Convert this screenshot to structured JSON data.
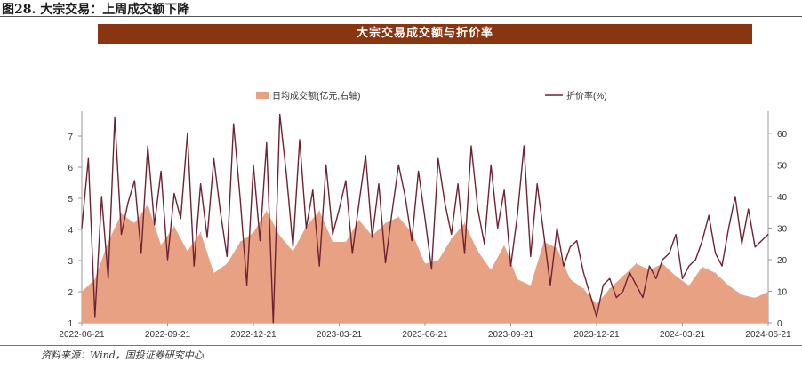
{
  "figure": {
    "title": "图28. 大宗交易：上周成交额下降",
    "banner": "大宗交易成交额与折价率",
    "source": "资料来源：Wind，国投证券研究中心"
  },
  "chart_data": {
    "type": "area+line",
    "legend": {
      "placement": "top-center",
      "area_label": "日均成交额(亿元,右轴)",
      "line_label": "折价率(%)"
    },
    "colors": {
      "area": "#e8a183",
      "line": "#6e2233"
    },
    "x_ticks": [
      "2022-06-21",
      "2022-09-21",
      "2022-12-21",
      "2023-03-21",
      "2023-06-21",
      "2023-09-21",
      "2023-12-21",
      "2024-03-21",
      "2024-06-21"
    ],
    "left_axis": {
      "ticks": [
        "1",
        "2",
        "3",
        "4",
        "5",
        "6",
        "7"
      ],
      "ylim": [
        1,
        7.8
      ]
    },
    "right_axis": {
      "ticks": [
        "0",
        "10",
        "20",
        "30",
        "40",
        "50",
        "60"
      ],
      "ylim": [
        0,
        67
      ]
    },
    "series": [
      {
        "name": "日均成交额(亿元,右轴)",
        "kind": "area",
        "axis": "left",
        "x": [
          0,
          2,
          4,
          6,
          8,
          10,
          12,
          14,
          16,
          18,
          20,
          22,
          24,
          26,
          28,
          30,
          32,
          34,
          36,
          38,
          40,
          42,
          44,
          46,
          48,
          50,
          52,
          54,
          56,
          58,
          60,
          62,
          64,
          66,
          68,
          70,
          72,
          74,
          76,
          78,
          80,
          82,
          84,
          86,
          88,
          90,
          92,
          94,
          96,
          98,
          100,
          102,
          104
        ],
        "values": [
          2.0,
          2.4,
          3.6,
          4.5,
          4.2,
          4.8,
          3.5,
          4.1,
          3.3,
          3.9,
          2.6,
          2.9,
          3.6,
          3.9,
          4.6,
          3.8,
          3.3,
          4.1,
          4.6,
          3.6,
          3.6,
          4.3,
          3.8,
          4.2,
          4.4,
          3.9,
          2.9,
          3.0,
          3.7,
          4.2,
          3.3,
          2.7,
          3.5,
          2.4,
          2.2,
          3.6,
          3.4,
          2.4,
          2.1,
          1.6,
          2.1,
          2.5,
          2.9,
          2.7,
          2.9,
          2.5,
          2.2,
          2.8,
          2.6,
          2.2,
          1.9,
          1.8,
          2.0
        ]
      },
      {
        "name": "折价率(%)",
        "kind": "line",
        "axis": "right",
        "x": [
          0,
          1,
          2,
          3,
          4,
          5,
          6,
          7,
          8,
          9,
          10,
          11,
          12,
          13,
          14,
          15,
          16,
          17,
          18,
          19,
          20,
          21,
          22,
          23,
          24,
          25,
          26,
          27,
          28,
          29,
          30,
          31,
          32,
          33,
          34,
          35,
          36,
          37,
          38,
          39,
          40,
          41,
          42,
          43,
          44,
          45,
          46,
          47,
          48,
          49,
          50,
          51,
          52,
          53,
          54,
          55,
          56,
          57,
          58,
          59,
          60,
          61,
          62,
          63,
          64,
          65,
          66,
          67,
          68,
          69,
          70,
          71,
          72,
          73,
          74,
          75,
          76,
          77,
          78,
          79,
          80,
          81,
          82,
          83,
          84,
          85,
          86,
          87,
          88,
          89,
          90,
          91,
          92,
          93,
          94,
          95,
          96,
          97,
          98,
          99,
          100,
          101,
          102,
          103,
          104
        ],
        "values": [
          30,
          52,
          2,
          40,
          14,
          65,
          28,
          38,
          45,
          22,
          56,
          31,
          48,
          20,
          41,
          33,
          60,
          18,
          44,
          27,
          52,
          35,
          21,
          63,
          39,
          12,
          50,
          26,
          57,
          0,
          66,
          47,
          24,
          58,
          30,
          42,
          18,
          50,
          28,
          36,
          45,
          22,
          38,
          53,
          27,
          44,
          19,
          35,
          50,
          40,
          26,
          48,
          33,
          17,
          52,
          38,
          28,
          44,
          22,
          56,
          36,
          25,
          50,
          30,
          42,
          18,
          34,
          56,
          21,
          44,
          28,
          12,
          30,
          18,
          24,
          26,
          16,
          9,
          2,
          12,
          14,
          8,
          10,
          16,
          12,
          8,
          18,
          14,
          20,
          22,
          28,
          14,
          18,
          20,
          26,
          34,
          22,
          18,
          30,
          40,
          25,
          36,
          24,
          26,
          28
        ]
      }
    ]
  }
}
